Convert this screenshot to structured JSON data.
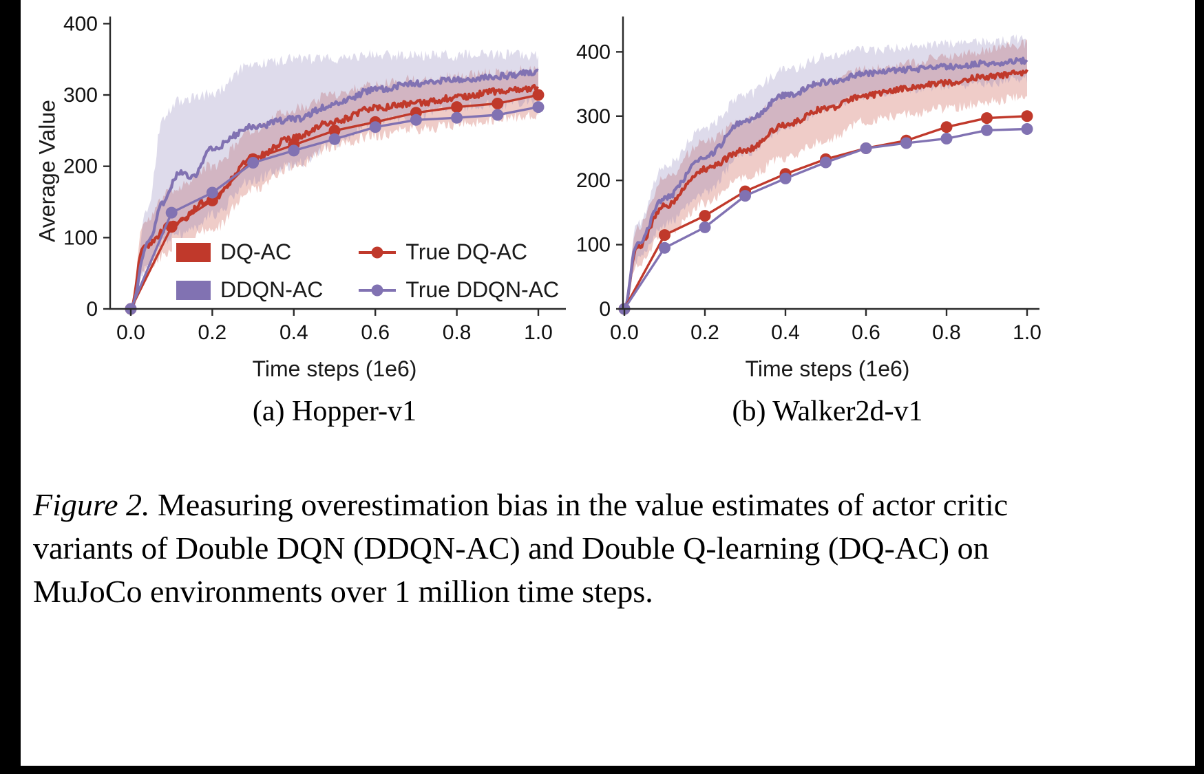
{
  "colors": {
    "red": "#c0392b",
    "purple": "#8172b2",
    "axis": "#2a2a2a",
    "text": "#111111",
    "frame": "#000000"
  },
  "figure": {
    "caption_prefix": "Figure 2.",
    "caption_text": "Measuring overestimation bias in the value estimates of actor critic variants of Double DQN (DDQN-AC) and Double Q-learning (DQ-AC) on MuJoCo environments over 1 million time steps."
  },
  "legend": {
    "location": "inside-bottom-of-panel-a",
    "entries": [
      {
        "label": "DQ-AC",
        "swatch": "patch",
        "color": "red"
      },
      {
        "label": "DDQN-AC",
        "swatch": "patch",
        "color": "purple"
      },
      {
        "label": "True DQ-AC",
        "swatch": "line-dot",
        "color": "red"
      },
      {
        "label": "True DDQN-AC",
        "swatch": "line-dot",
        "color": "purple"
      }
    ]
  },
  "chart_data": [
    {
      "type": "line",
      "title": "(a) Hopper-v1",
      "xlabel": "Time steps (1e6)",
      "ylabel": "Average Value",
      "xlim": [
        0,
        1.0
      ],
      "ylim": [
        0,
        410
      ],
      "grid": false,
      "x": [
        0,
        0.1,
        0.2,
        0.3,
        0.4,
        0.5,
        0.6,
        0.7,
        0.8,
        0.9,
        1.0
      ],
      "xticks": [
        "0.0",
        "0.2",
        "0.4",
        "0.6",
        "0.8",
        "1.0"
      ],
      "yticks": [
        "0",
        "100",
        "200",
        "300",
        "400"
      ],
      "series": [
        {
          "name": "DQ-AC",
          "style": "band_line",
          "color": "red",
          "x": [
            0,
            0.03,
            0.1,
            0.2,
            0.3,
            0.4,
            0.5,
            0.6,
            0.7,
            0.8,
            0.9,
            1.0
          ],
          "values": [
            0,
            85,
            118,
            155,
            212,
            240,
            263,
            282,
            288,
            296,
            305,
            310
          ],
          "band_low": [
            0,
            55,
            82,
            112,
            168,
            200,
            228,
            244,
            252,
            258,
            266,
            272
          ],
          "band_high": [
            0,
            120,
            168,
            200,
            252,
            280,
            302,
            316,
            322,
            326,
            332,
            336
          ]
        },
        {
          "name": "DDQN-AC",
          "style": "band_line",
          "color": "purple",
          "x": [
            0,
            0.04,
            0.08,
            0.12,
            0.15,
            0.2,
            0.3,
            0.4,
            0.5,
            0.6,
            0.7,
            0.8,
            0.9,
            1.0
          ],
          "values": [
            0,
            90,
            150,
            192,
            185,
            226,
            256,
            266,
            287,
            308,
            316,
            321,
            326,
            332
          ],
          "band_low": [
            0,
            60,
            95,
            105,
            110,
            132,
            182,
            202,
            232,
            262,
            272,
            282,
            287,
            292
          ],
          "band_high": [
            0,
            140,
            270,
            292,
            295,
            302,
            344,
            350,
            350,
            356,
            356,
            356,
            356,
            356
          ]
        },
        {
          "name": "True DQ-AC",
          "style": "marker_line",
          "color": "red",
          "values": [
            0,
            115,
            152,
            210,
            230,
            250,
            262,
            275,
            283,
            288,
            300
          ]
        },
        {
          "name": "True DDQN-AC",
          "style": "marker_line",
          "color": "purple",
          "values": [
            0,
            135,
            163,
            205,
            222,
            238,
            255,
            265,
            268,
            272,
            283
          ]
        }
      ]
    },
    {
      "type": "line",
      "title": "(b) Walker2d-v1",
      "xlabel": "Time steps (1e6)",
      "ylabel": "",
      "xlim": [
        0,
        1.0
      ],
      "ylim": [
        0,
        455
      ],
      "grid": false,
      "x": [
        0,
        0.1,
        0.2,
        0.3,
        0.4,
        0.5,
        0.6,
        0.7,
        0.8,
        0.9,
        1.0
      ],
      "xticks": [
        "0.0",
        "0.2",
        "0.4",
        "0.6",
        "0.8",
        "1.0"
      ],
      "yticks": [
        "0",
        "100",
        "200",
        "300",
        "400"
      ],
      "series": [
        {
          "name": "DQ-AC",
          "style": "band_line",
          "color": "red",
          "x": [
            0,
            0.03,
            0.1,
            0.2,
            0.3,
            0.4,
            0.5,
            0.6,
            0.7,
            0.8,
            0.9,
            1.0
          ],
          "values": [
            0,
            95,
            160,
            218,
            247,
            287,
            312,
            332,
            343,
            352,
            361,
            368
          ],
          "band_low": [
            0,
            70,
            115,
            165,
            205,
            235,
            262,
            292,
            302,
            312,
            322,
            332
          ],
          "band_high": [
            0,
            125,
            205,
            262,
            292,
            332,
            352,
            372,
            382,
            392,
            402,
            412
          ]
        },
        {
          "name": "DDQN-AC",
          "style": "band_line",
          "color": "purple",
          "x": [
            0,
            0.03,
            0.1,
            0.2,
            0.3,
            0.4,
            0.5,
            0.6,
            0.7,
            0.8,
            0.9,
            1.0
          ],
          "values": [
            0,
            100,
            172,
            237,
            292,
            332,
            353,
            366,
            372,
            377,
            382,
            386
          ],
          "band_low": [
            0,
            75,
            132,
            182,
            242,
            282,
            312,
            332,
            342,
            347,
            352,
            357
          ],
          "band_high": [
            0,
            130,
            222,
            282,
            332,
            372,
            392,
            402,
            407,
            412,
            416,
            421
          ]
        },
        {
          "name": "True DQ-AC",
          "style": "marker_line",
          "color": "red",
          "values": [
            0,
            115,
            145,
            183,
            210,
            233,
            250,
            262,
            283,
            297,
            300
          ]
        },
        {
          "name": "True DDQN-AC",
          "style": "marker_line",
          "color": "purple",
          "values": [
            0,
            95,
            127,
            176,
            203,
            228,
            250,
            258,
            265,
            278,
            280
          ]
        }
      ]
    }
  ]
}
